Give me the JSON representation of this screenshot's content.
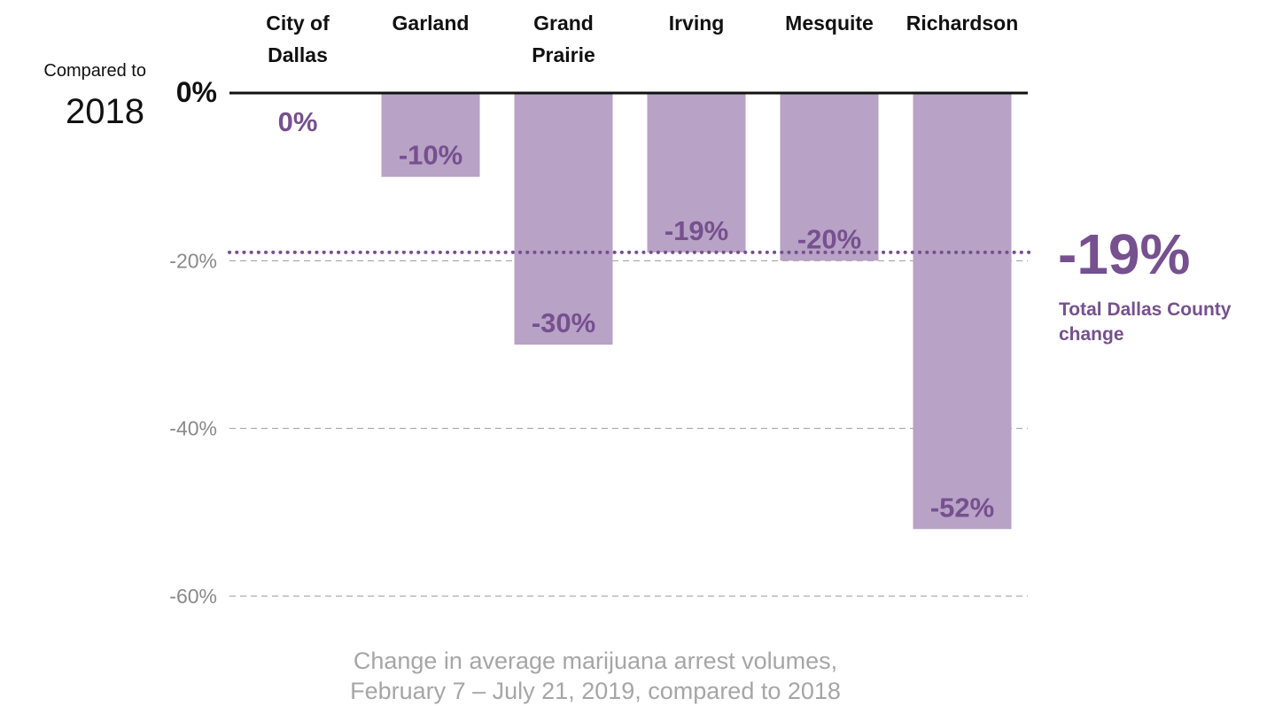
{
  "colors": {
    "bar": "#b8a2c6",
    "accent": "#76508f",
    "axis": "#111111",
    "grid": "#9a9a9a",
    "tick": "#8a8a8a",
    "caption": "#a6a6a6"
  },
  "compared_to": {
    "line1": "Compared to",
    "line2": "2018"
  },
  "reference": {
    "value_text": "-19%",
    "label_line1": "Total Dallas County",
    "label_line2": "change"
  },
  "caption": {
    "line1": "Change in average marijuana arrest volumes,",
    "line2": "February 7 – July 21, 2019, compared to 2018"
  },
  "chart_data": {
    "type": "bar",
    "categories": [
      [
        "City of",
        "Dallas"
      ],
      [
        "Garland"
      ],
      [
        "Grand",
        "Prairie"
      ],
      [
        "Irving"
      ],
      [
        "Mesquite"
      ],
      [
        "Richardson"
      ]
    ],
    "values": [
      0,
      -10,
      -30,
      -19,
      -20,
      -52
    ],
    "value_labels": [
      "0%",
      "-10%",
      "-30%",
      "-19%",
      "-20%",
      "-52%"
    ],
    "ylim": [
      -60,
      0
    ],
    "yticks": [
      0,
      -20,
      -40,
      -60
    ],
    "ytick_labels": [
      "0%",
      "-20%",
      "-40%",
      "-60%"
    ],
    "reference_line": -19,
    "grid": true
  }
}
